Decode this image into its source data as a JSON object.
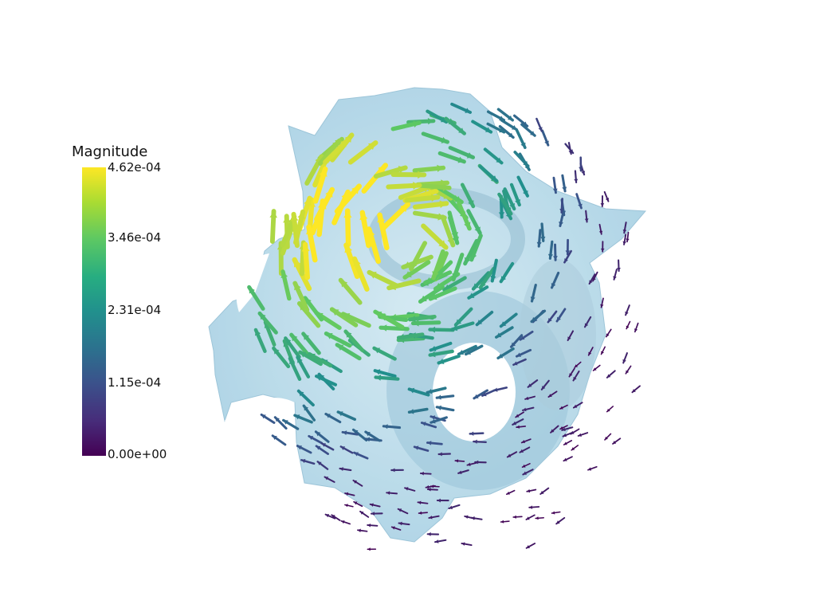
{
  "legend": {
    "title": "Magnitude",
    "ticks": [
      "4.62e-04",
      "3.46e-04",
      "2.31e-04",
      "1.15e-04",
      "0.00e+00"
    ]
  },
  "colors": {
    "surface": "#a8d4e6",
    "colormap": [
      "#440154",
      "#3b518b",
      "#21908d",
      "#5cc863",
      "#fde725"
    ],
    "background": "#ffffff"
  }
}
